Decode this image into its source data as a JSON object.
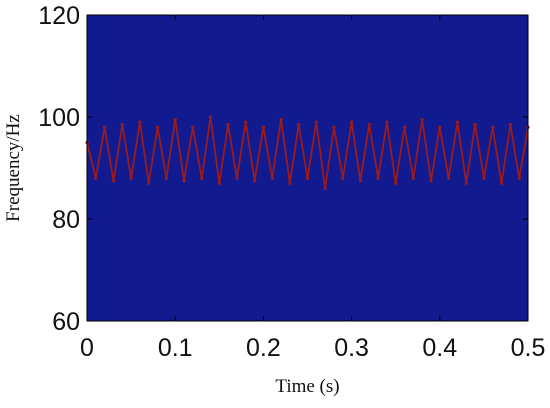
{
  "chart_data": {
    "type": "heatmap",
    "xlabel": "Time (s)",
    "ylabel": "Frequency/Hz",
    "xlim": [
      0,
      0.5
    ],
    "ylim": [
      60,
      120
    ],
    "xticks": [
      0,
      0.1,
      0.2,
      0.3,
      0.4,
      0.5
    ],
    "yticks": [
      60,
      80,
      100,
      120
    ],
    "xtick_labels": [
      "0",
      "0.1",
      "0.2",
      "0.3",
      "0.4",
      "0.5"
    ],
    "ytick_labels": [
      "60",
      "80",
      "100",
      "120"
    ],
    "grid": false,
    "colors": {
      "background": "#111a8e",
      "ridge": "#9b1a1c",
      "axes": "#000000"
    },
    "series": [
      {
        "type": "line",
        "x": [
          0,
          0.01,
          0.02,
          0.03,
          0.04,
          0.05,
          0.06,
          0.07,
          0.08,
          0.09,
          0.1,
          0.11,
          0.12,
          0.13,
          0.14,
          0.15,
          0.16,
          0.17,
          0.18,
          0.19,
          0.2,
          0.21,
          0.22,
          0.23,
          0.24,
          0.25,
          0.26,
          0.27,
          0.28,
          0.29,
          0.3,
          0.31,
          0.32,
          0.33,
          0.34,
          0.35,
          0.36,
          0.37,
          0.38,
          0.39,
          0.4,
          0.41,
          0.42,
          0.43,
          0.44,
          0.45,
          0.46,
          0.47,
          0.48,
          0.49,
          0.5
        ],
        "y": [
          95,
          88,
          98,
          87.5,
          98.5,
          88,
          99,
          87,
          98,
          88,
          99.5,
          87.5,
          98,
          88,
          100,
          87,
          98.5,
          88,
          99,
          87.5,
          98,
          88,
          99.5,
          87,
          98.5,
          88,
          99,
          86,
          98,
          88,
          99,
          87.5,
          98.5,
          88,
          99,
          87,
          98,
          88,
          99.5,
          87.5,
          98,
          88,
          99,
          87,
          98.5,
          88,
          98,
          87,
          98.5,
          88,
          98
        ]
      }
    ]
  }
}
